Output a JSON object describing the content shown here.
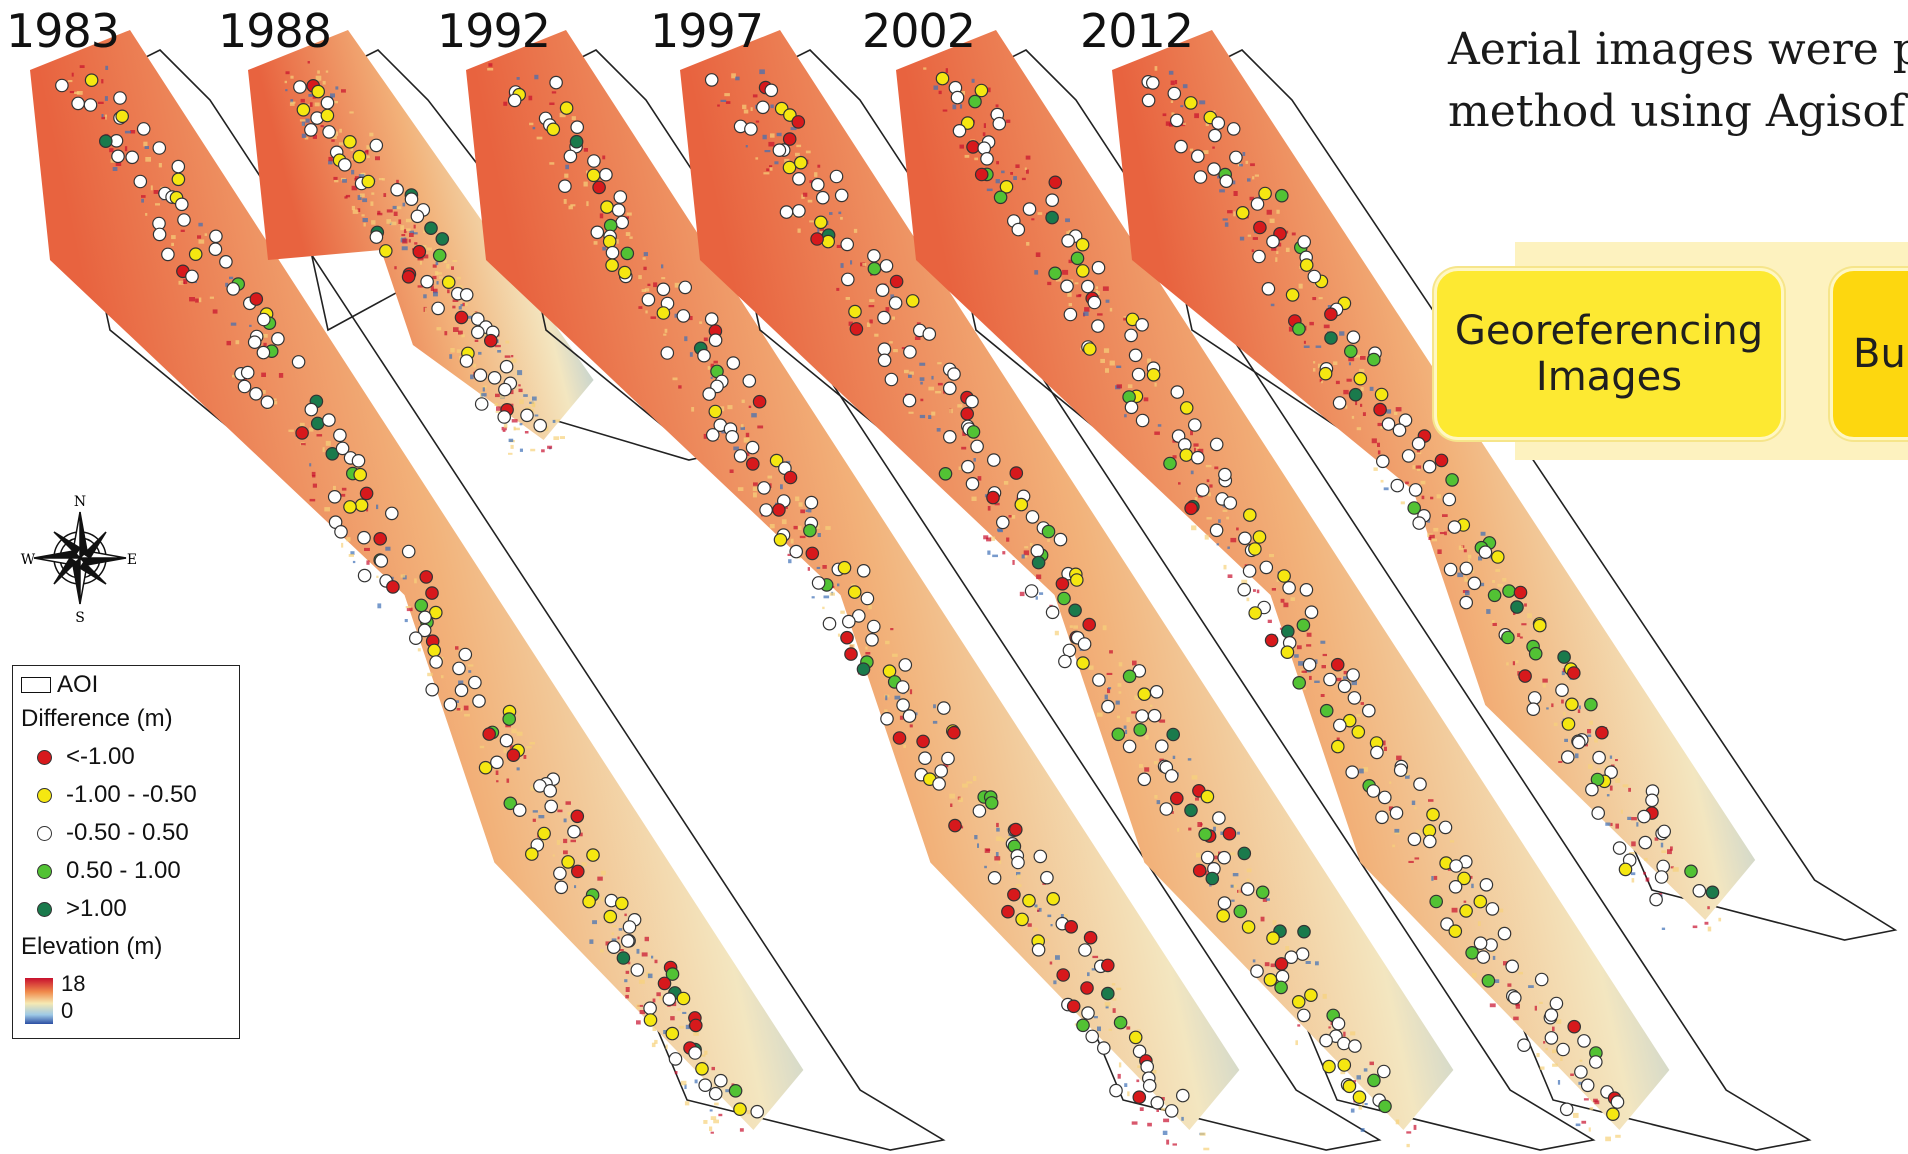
{
  "years": [
    "1983",
    "1988",
    "1992",
    "1997",
    "2002",
    "2012"
  ],
  "caption": {
    "line1": "Aerial images were p",
    "line2": "method using Agisof"
  },
  "workflow": {
    "steps": [
      "Georeferencing\nImages",
      "Bui"
    ]
  },
  "compass": {
    "n": "N",
    "e": "E",
    "s": "S",
    "w": "W"
  },
  "legend": {
    "aoi": "AOI",
    "difference_title": "Difference (m)",
    "classes": [
      {
        "label": "<-1.00",
        "color": "#d7191c"
      },
      {
        "label": "-1.00 - -0.50",
        "color": "#f5e711"
      },
      {
        "label": "-0.50 - 0.50",
        "color": "#ffffff"
      },
      {
        "label": "0.50 - 1.00",
        "color": "#52c234"
      },
      {
        "label": ">1.00",
        "color": "#1a7a4c"
      }
    ],
    "elevation_title": "Elevation (m)",
    "elevation_max": "18",
    "elevation_min": "0"
  },
  "colors": {
    "high": "#c8102e",
    "mid": "#f6e9b2",
    "low": "#2b4ea2"
  }
}
